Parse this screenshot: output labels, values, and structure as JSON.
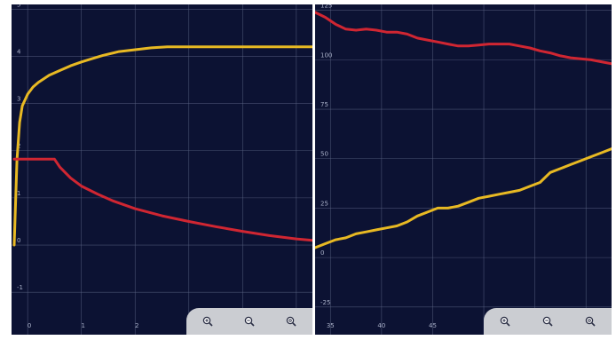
{
  "chart_data": [
    {
      "type": "line",
      "xlim": [
        -0.3,
        5.3
      ],
      "ylim": [
        -1.9,
        5.1
      ],
      "x_ticks": [
        "0",
        "1",
        "2"
      ],
      "y_ticks": [
        "5",
        "4",
        "3",
        "2",
        "1",
        "0",
        "-1"
      ],
      "grid": true,
      "series": [
        {
          "color": "#e8b923",
          "points": [
            [
              -0.25,
              0
            ],
            [
              -0.2,
              1.8
            ],
            [
              -0.15,
              2.6
            ],
            [
              -0.1,
              2.95
            ],
            [
              0,
              3.2
            ],
            [
              0.1,
              3.35
            ],
            [
              0.2,
              3.45
            ],
            [
              0.4,
              3.6
            ],
            [
              0.6,
              3.7
            ],
            [
              0.8,
              3.8
            ],
            [
              1,
              3.88
            ],
            [
              1.2,
              3.95
            ],
            [
              1.4,
              4.02
            ],
            [
              1.7,
              4.1
            ],
            [
              2,
              4.14
            ],
            [
              2.3,
              4.18
            ],
            [
              2.6,
              4.2
            ],
            [
              3,
              4.2
            ],
            [
              4,
              4.2
            ],
            [
              5.3,
              4.2
            ]
          ]
        },
        {
          "color": "#d02632",
          "points": [
            [
              -0.25,
              1.82
            ],
            [
              0,
              1.82
            ],
            [
              0.3,
              1.82
            ],
            [
              0.5,
              1.82
            ],
            [
              0.6,
              1.65
            ],
            [
              0.8,
              1.42
            ],
            [
              1,
              1.25
            ],
            [
              1.3,
              1.08
            ],
            [
              1.6,
              0.93
            ],
            [
              2,
              0.77
            ],
            [
              2.5,
              0.62
            ],
            [
              3,
              0.5
            ],
            [
              3.5,
              0.39
            ],
            [
              4,
              0.29
            ],
            [
              4.5,
              0.2
            ],
            [
              5,
              0.13
            ],
            [
              5.3,
              0.1
            ]
          ]
        }
      ]
    },
    {
      "type": "line",
      "xlim": [
        33.5,
        62.5
      ],
      "ylim": [
        -39,
        128
      ],
      "x_ticks": [
        "35",
        "40",
        "45"
      ],
      "y_ticks": [
        "125",
        "100",
        "75",
        "50",
        "25",
        "0",
        "-25"
      ],
      "grid": true,
      "series": [
        {
          "color": "#d02632",
          "points": [
            [
              33.5,
              124
            ],
            [
              34.5,
              121.5
            ],
            [
              35.5,
              118
            ],
            [
              36.5,
              115.5
            ],
            [
              37.5,
              115
            ],
            [
              38.5,
              115.5
            ],
            [
              39.5,
              115
            ],
            [
              40.5,
              114
            ],
            [
              41.5,
              114
            ],
            [
              42.5,
              113
            ],
            [
              43.5,
              111
            ],
            [
              44.5,
              110
            ],
            [
              45.5,
              109
            ],
            [
              46.5,
              108
            ],
            [
              47.5,
              107
            ],
            [
              48.5,
              107
            ],
            [
              49.5,
              107.5
            ],
            [
              50.5,
              108
            ],
            [
              51.5,
              108
            ],
            [
              52.5,
              108
            ],
            [
              53.5,
              107
            ],
            [
              54.5,
              106
            ],
            [
              55.5,
              104.5
            ],
            [
              56.5,
              103.5
            ],
            [
              57.5,
              102
            ],
            [
              58.5,
              101
            ],
            [
              59.5,
              100.5
            ],
            [
              60.5,
              100
            ],
            [
              61.5,
              99
            ],
            [
              62.5,
              98
            ]
          ]
        },
        {
          "color": "#e8b923",
          "points": [
            [
              33.5,
              5
            ],
            [
              34.5,
              7
            ],
            [
              35.5,
              9
            ],
            [
              36.5,
              10
            ],
            [
              37.5,
              12
            ],
            [
              38.5,
              13
            ],
            [
              39.5,
              14
            ],
            [
              40.5,
              15
            ],
            [
              41.5,
              16
            ],
            [
              42.5,
              18
            ],
            [
              43.5,
              21
            ],
            [
              44.5,
              23
            ],
            [
              45.5,
              25
            ],
            [
              46.5,
              25
            ],
            [
              47.5,
              26
            ],
            [
              48.5,
              28
            ],
            [
              49.5,
              30
            ],
            [
              50.5,
              31
            ],
            [
              51.5,
              32
            ],
            [
              52.5,
              33
            ],
            [
              53.5,
              34
            ],
            [
              54.5,
              36
            ],
            [
              55.5,
              38
            ],
            [
              56.5,
              43
            ],
            [
              57.5,
              45
            ],
            [
              58.5,
              47
            ],
            [
              59.5,
              49
            ],
            [
              60.5,
              51
            ],
            [
              61.5,
              53
            ],
            [
              62.5,
              55
            ]
          ]
        }
      ]
    }
  ],
  "toolbar": {
    "buttons": [
      {
        "name": "zoom-in",
        "icon": "magnifier-plus-icon"
      },
      {
        "name": "zoom-out",
        "icon": "magnifier-minus-icon"
      },
      {
        "name": "zoom-reset",
        "icon": "magnifier-reset-icon"
      }
    ]
  }
}
